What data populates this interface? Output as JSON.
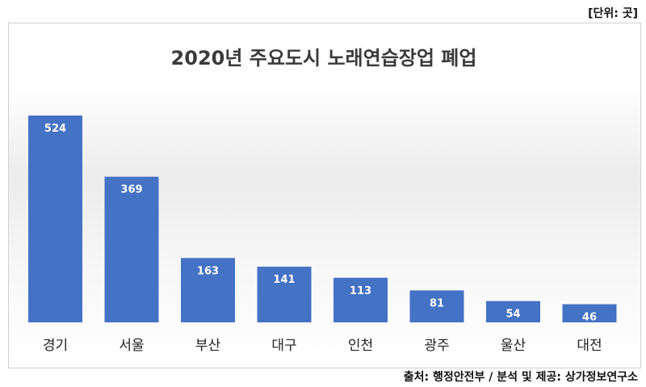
{
  "unit_label": "[단위: 곳]",
  "source_label": "출처: 행정안전부 / 분석 및 제공: 상가정보연구소",
  "chart_data": {
    "type": "bar",
    "title": "2020년 주요도시 노래연습장업 폐업",
    "categories": [
      "경기",
      "서울",
      "부산",
      "대구",
      "인천",
      "광주",
      "울산",
      "대전"
    ],
    "values": [
      524,
      369,
      163,
      141,
      113,
      81,
      54,
      46
    ],
    "xlabel": "",
    "ylabel": "",
    "ylim": [
      0,
      524
    ],
    "grid": false,
    "legend": "none",
    "bar_color": "#4472c4",
    "label_color": "#ffffff"
  }
}
